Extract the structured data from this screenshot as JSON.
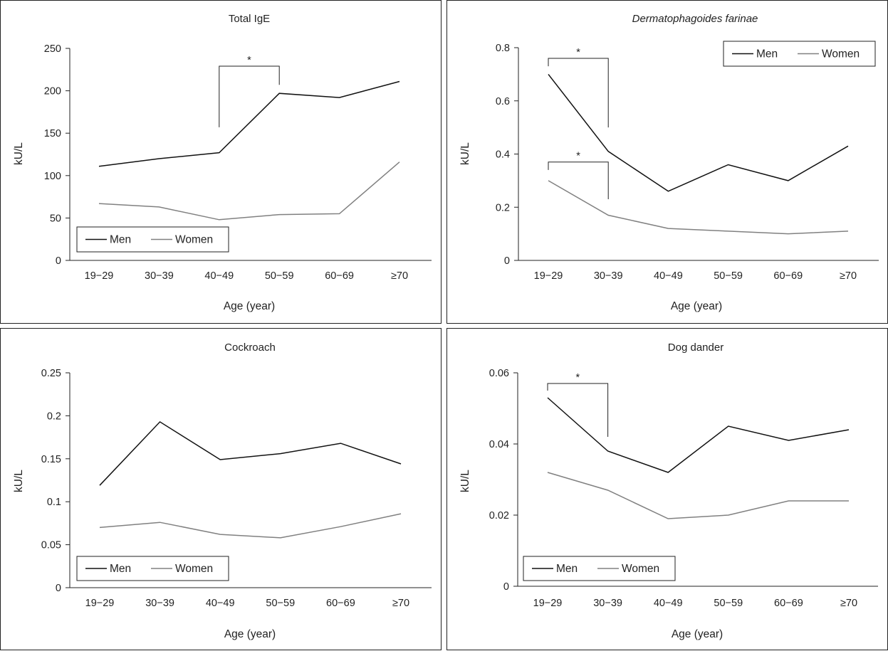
{
  "chart_data": [
    {
      "type": "line",
      "title": "Total IgE",
      "title_italic": false,
      "xlabel": "Age (year)",
      "ylabel": "kU/L",
      "categories": [
        "19−29",
        "30−39",
        "40−49",
        "50−59",
        "60−69",
        "≥70"
      ],
      "ylim": [
        0,
        250
      ],
      "yticks": [
        0,
        50,
        100,
        150,
        200,
        250
      ],
      "ytick_labels": [
        "0",
        "50",
        "100",
        "150",
        "200",
        "250"
      ],
      "series": [
        {
          "name": "Men",
          "color": "#111111",
          "values": [
            111,
            120,
            127,
            197,
            192,
            211
          ]
        },
        {
          "name": "Women",
          "color": "#808080",
          "values": [
            67,
            63,
            48,
            54,
            55,
            116
          ]
        }
      ],
      "legend": {
        "position": "bottom-left",
        "boxed": true
      },
      "annotations": [
        {
          "text": "*",
          "from": 2,
          "to": 3,
          "top": 229,
          "left_bottom": 157,
          "right_bottom": 207
        }
      ]
    },
    {
      "type": "line",
      "title": "Dermatophagoides farinae",
      "title_italic": true,
      "xlabel": "Age (year)",
      "ylabel": "kU/L",
      "categories": [
        "19−29",
        "30−39",
        "40−49",
        "50−59",
        "60−69",
        "≥70"
      ],
      "ylim": [
        0,
        0.8
      ],
      "yticks": [
        0,
        0.2,
        0.4,
        0.6,
        0.8
      ],
      "ytick_labels": [
        "0",
        "0.2",
        "0.4",
        "0.6",
        "0.8"
      ],
      "series": [
        {
          "name": "Men",
          "color": "#111111",
          "values": [
            0.7,
            0.41,
            0.26,
            0.36,
            0.3,
            0.43
          ]
        },
        {
          "name": "Women",
          "color": "#808080",
          "values": [
            0.3,
            0.17,
            0.12,
            0.11,
            0.1,
            0.11
          ]
        }
      ],
      "legend": {
        "position": "top-right",
        "boxed": true
      },
      "annotations": [
        {
          "text": "*",
          "from": 0,
          "to": 1,
          "top": 0.76,
          "left_bottom": 0.73,
          "right_bottom": 0.5
        },
        {
          "text": "*",
          "from": 0,
          "to": 1,
          "top": 0.37,
          "left_bottom": 0.34,
          "right_bottom": 0.23
        }
      ]
    },
    {
      "type": "line",
      "title": "Cockroach",
      "title_italic": false,
      "xlabel": "Age (year)",
      "ylabel": "kU/L",
      "categories": [
        "19−29",
        "30−39",
        "40−49",
        "50−59",
        "60−69",
        "≥70"
      ],
      "ylim": [
        0,
        0.25
      ],
      "yticks": [
        0,
        0.05,
        0.1,
        0.15,
        0.2,
        0.25
      ],
      "ytick_labels": [
        "0",
        "0.05",
        "0.1",
        "0.15",
        "0.2",
        "0.25"
      ],
      "series": [
        {
          "name": "Men",
          "color": "#111111",
          "values": [
            0.119,
            0.193,
            0.149,
            0.156,
            0.168,
            0.144
          ]
        },
        {
          "name": "Women",
          "color": "#808080",
          "values": [
            0.07,
            0.076,
            0.062,
            0.058,
            0.071,
            0.086
          ]
        }
      ],
      "legend": {
        "position": "bottom-left",
        "boxed": true
      },
      "annotations": []
    },
    {
      "type": "line",
      "title": "Dog dander",
      "title_italic": false,
      "xlabel": "Age (year)",
      "ylabel": "kU/L",
      "categories": [
        "19−29",
        "30−39",
        "40−49",
        "50−59",
        "60−69",
        "≥70"
      ],
      "ylim": [
        0,
        0.06
      ],
      "yticks": [
        0,
        0.02,
        0.04,
        0.06
      ],
      "ytick_labels": [
        "0",
        "0.02",
        "0.04",
        "0.06"
      ],
      "series": [
        {
          "name": "Men",
          "color": "#111111",
          "values": [
            0.053,
            0.038,
            0.032,
            0.045,
            0.041,
            0.044
          ]
        },
        {
          "name": "Women",
          "color": "#808080",
          "values": [
            0.032,
            0.027,
            0.019,
            0.02,
            0.024,
            0.024
          ]
        }
      ],
      "legend": {
        "position": "bottom-left",
        "boxed": true
      },
      "annotations": [
        {
          "text": "*",
          "from": 0,
          "to": 1,
          "top": 0.057,
          "left_bottom": 0.055,
          "right_bottom": 0.042
        }
      ]
    }
  ]
}
